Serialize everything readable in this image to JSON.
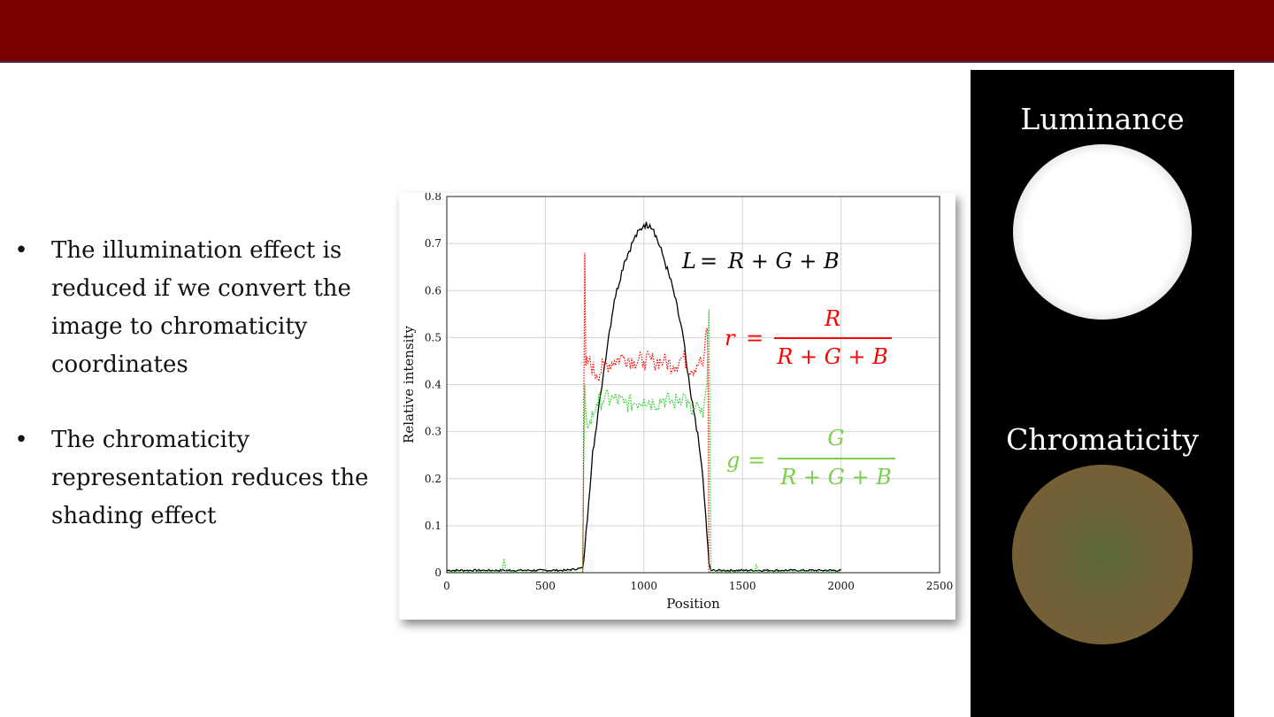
{
  "bullets": [
    "The illumination effect is reduced if we convert the image to chromaticity coordinates",
    "The chromaticity representation reduces the shading effect"
  ],
  "panel": {
    "luminance_title": "Luminance",
    "chromaticity_title": "Chromaticity"
  },
  "formulas": {
    "L": {
      "lhs": "L",
      "rhs": "R + G + B",
      "color": "#000000"
    },
    "r": {
      "lhs": "r",
      "num": "R",
      "den": "R + G + B",
      "color": "#ff0000"
    },
    "g": {
      "lhs": "g",
      "num": "G",
      "den": "R + G + B",
      "color": "#7ccf4a"
    }
  },
  "chart_data": {
    "type": "line",
    "xlabel": "Position",
    "ylabel": "Relative intensity",
    "xlim": [
      0,
      2500
    ],
    "ylim": [
      0,
      0.8
    ],
    "xticks": [
      0,
      500,
      1000,
      1500,
      2000,
      2500
    ],
    "yticks": [
      0,
      0.1,
      0.2,
      0.3,
      0.4,
      0.5,
      0.6,
      0.7,
      0.8
    ],
    "grid": true,
    "series": [
      {
        "color": "#000000",
        "style": "solid",
        "x": [
          0,
          200,
          400,
          600,
          690,
          700,
          720,
          740,
          760,
          780,
          800,
          820,
          850,
          900,
          950,
          1000,
          1030,
          1050,
          1100,
          1150,
          1200,
          1220,
          1240,
          1260,
          1280,
          1300,
          1320,
          1330,
          1340,
          1400,
          1500,
          1700,
          1900,
          2000
        ],
        "y": [
          0.005,
          0.005,
          0.005,
          0.005,
          0.01,
          0.05,
          0.15,
          0.26,
          0.31,
          0.38,
          0.44,
          0.5,
          0.58,
          0.66,
          0.71,
          0.74,
          0.74,
          0.73,
          0.67,
          0.6,
          0.5,
          0.43,
          0.37,
          0.33,
          0.27,
          0.2,
          0.08,
          0.02,
          0.005,
          0.005,
          0.005,
          0.005,
          0.005,
          0.005
        ]
      },
      {
        "color": "#ff0000",
        "style": "dotted",
        "x": [
          690,
          700,
          705,
          720,
          760,
          800,
          850,
          900,
          950,
          1000,
          1050,
          1100,
          1150,
          1200,
          1240,
          1280,
          1300,
          1320,
          1325,
          1330
        ],
        "y": [
          0.0,
          0.68,
          0.44,
          0.45,
          0.42,
          0.44,
          0.45,
          0.46,
          0.45,
          0.45,
          0.45,
          0.45,
          0.44,
          0.46,
          0.43,
          0.45,
          0.44,
          0.52,
          0.46,
          0.0
        ]
      },
      {
        "color": "#22cc22",
        "style": "dotted",
        "x": [
          0,
          280,
          290,
          300,
          690,
          700,
          705,
          720,
          760,
          800,
          850,
          900,
          950,
          1000,
          1050,
          1100,
          1150,
          1200,
          1240,
          1280,
          1300,
          1320,
          1330,
          1335,
          1340,
          1560,
          1570,
          1580,
          2000
        ],
        "y": [
          0.002,
          0.002,
          0.03,
          0.002,
          0.0,
          0.4,
          0.34,
          0.31,
          0.36,
          0.37,
          0.37,
          0.36,
          0.36,
          0.37,
          0.36,
          0.37,
          0.36,
          0.38,
          0.34,
          0.35,
          0.33,
          0.4,
          0.56,
          0.3,
          0.002,
          0.002,
          0.015,
          0.002,
          0.002
        ]
      }
    ]
  }
}
